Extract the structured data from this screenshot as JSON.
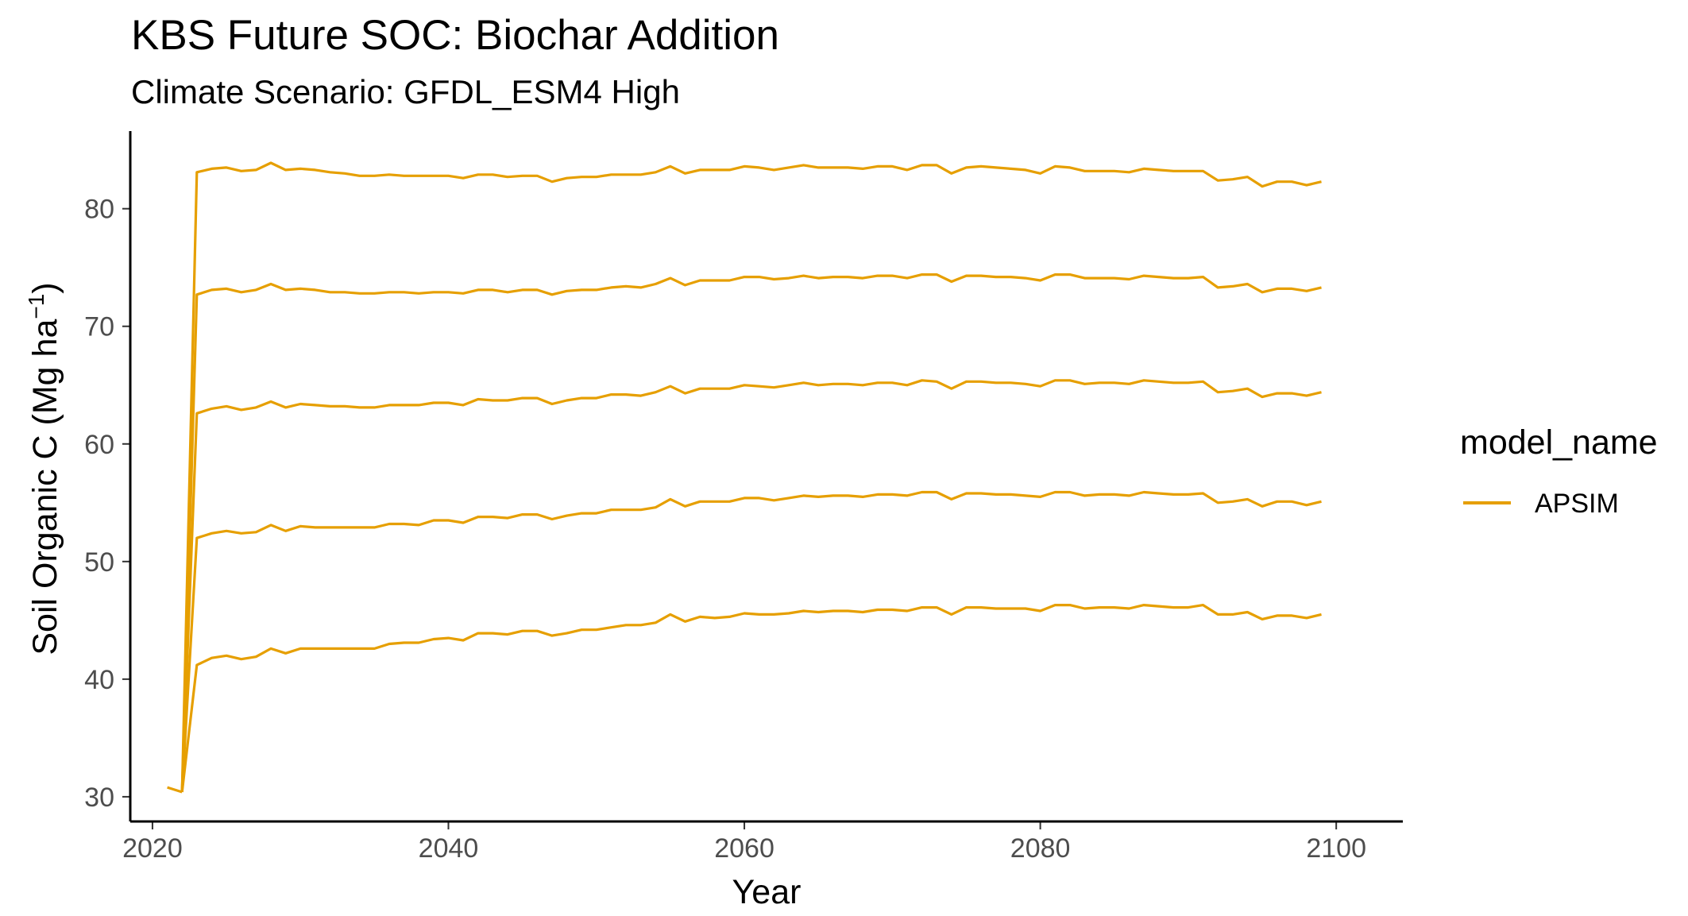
{
  "chart_data": {
    "type": "line",
    "title": "KBS  Future SOC: Biochar Addition",
    "subtitle": "Climate Scenario: GFDL_ESM4 High",
    "xlabel": "Year",
    "ylabel_main": "Soil Organic C (Mg ha",
    "ylabel_sup": "−1",
    "ylabel_close": ")",
    "xlim": [
      2018.5,
      2104.5
    ],
    "ylim": [
      27.9,
      86.6
    ],
    "x_ticks": [
      2020,
      2040,
      2060,
      2080,
      2100
    ],
    "y_ticks": [
      30,
      40,
      50,
      60,
      70,
      80
    ],
    "grid": false,
    "legend": {
      "title": "model_name",
      "position": "right",
      "entries": [
        "APSIM"
      ]
    },
    "series_color": "#E69F00",
    "series": [
      {
        "name": "APSIM",
        "x": [
          2021,
          2022
        ],
        "y": [
          30.8,
          30.4
        ]
      },
      {
        "name": "APSIM",
        "x": [
          2022,
          2023,
          2024,
          2025,
          2026,
          2027,
          2028,
          2029,
          2030,
          2031,
          2032,
          2033,
          2034,
          2035,
          2036,
          2037,
          2038,
          2039,
          2040,
          2041,
          2042,
          2043,
          2044,
          2045,
          2046,
          2047,
          2048,
          2049,
          2050,
          2051,
          2052,
          2053,
          2054,
          2055,
          2056,
          2057,
          2058,
          2059,
          2060,
          2061,
          2062,
          2063,
          2064,
          2065,
          2066,
          2067,
          2068,
          2069,
          2070,
          2071,
          2072,
          2073,
          2074,
          2075,
          2076,
          2077,
          2078,
          2079,
          2080,
          2081,
          2082,
          2083,
          2084,
          2085,
          2086,
          2087,
          2088,
          2089,
          2090,
          2091,
          2092,
          2093,
          2094,
          2095,
          2096,
          2097,
          2098,
          2099
        ],
        "y": [
          30.4,
          41.2,
          41.8,
          42.0,
          41.7,
          41.9,
          42.6,
          42.2,
          42.6,
          42.6,
          42.6,
          42.6,
          42.6,
          42.6,
          43.0,
          43.1,
          43.1,
          43.4,
          43.5,
          43.3,
          43.9,
          43.9,
          43.8,
          44.1,
          44.1,
          43.7,
          43.9,
          44.2,
          44.2,
          44.4,
          44.6,
          44.6,
          44.8,
          45.5,
          44.9,
          45.3,
          45.2,
          45.3,
          45.6,
          45.5,
          45.5,
          45.6,
          45.8,
          45.7,
          45.8,
          45.8,
          45.7,
          45.9,
          45.9,
          45.8,
          46.1,
          46.1,
          45.5,
          46.1,
          46.1,
          46.0,
          46.0,
          46.0,
          45.8,
          46.3,
          46.3,
          46.0,
          46.1,
          46.1,
          46.0,
          46.3,
          46.2,
          46.1,
          46.1,
          46.3,
          45.5,
          45.5,
          45.7,
          45.1,
          45.4,
          45.4,
          45.2,
          45.5
        ]
      },
      {
        "name": "APSIM",
        "x": [
          2022,
          2023,
          2024,
          2025,
          2026,
          2027,
          2028,
          2029,
          2030,
          2031,
          2032,
          2033,
          2034,
          2035,
          2036,
          2037,
          2038,
          2039,
          2040,
          2041,
          2042,
          2043,
          2044,
          2045,
          2046,
          2047,
          2048,
          2049,
          2050,
          2051,
          2052,
          2053,
          2054,
          2055,
          2056,
          2057,
          2058,
          2059,
          2060,
          2061,
          2062,
          2063,
          2064,
          2065,
          2066,
          2067,
          2068,
          2069,
          2070,
          2071,
          2072,
          2073,
          2074,
          2075,
          2076,
          2077,
          2078,
          2079,
          2080,
          2081,
          2082,
          2083,
          2084,
          2085,
          2086,
          2087,
          2088,
          2089,
          2090,
          2091,
          2092,
          2093,
          2094,
          2095,
          2096,
          2097,
          2098,
          2099
        ],
        "y": [
          30.4,
          52.0,
          52.4,
          52.6,
          52.4,
          52.5,
          53.1,
          52.6,
          53.0,
          52.9,
          52.9,
          52.9,
          52.9,
          52.9,
          53.2,
          53.2,
          53.1,
          53.5,
          53.5,
          53.3,
          53.8,
          53.8,
          53.7,
          54.0,
          54.0,
          53.6,
          53.9,
          54.1,
          54.1,
          54.4,
          54.4,
          54.4,
          54.6,
          55.3,
          54.7,
          55.1,
          55.1,
          55.1,
          55.4,
          55.4,
          55.2,
          55.4,
          55.6,
          55.5,
          55.6,
          55.6,
          55.5,
          55.7,
          55.7,
          55.6,
          55.9,
          55.9,
          55.3,
          55.8,
          55.8,
          55.7,
          55.7,
          55.6,
          55.5,
          55.9,
          55.9,
          55.6,
          55.7,
          55.7,
          55.6,
          55.9,
          55.8,
          55.7,
          55.7,
          55.8,
          55.0,
          55.1,
          55.3,
          54.7,
          55.1,
          55.1,
          54.8,
          55.1
        ]
      },
      {
        "name": "APSIM",
        "x": [
          2022,
          2023,
          2024,
          2025,
          2026,
          2027,
          2028,
          2029,
          2030,
          2031,
          2032,
          2033,
          2034,
          2035,
          2036,
          2037,
          2038,
          2039,
          2040,
          2041,
          2042,
          2043,
          2044,
          2045,
          2046,
          2047,
          2048,
          2049,
          2050,
          2051,
          2052,
          2053,
          2054,
          2055,
          2056,
          2057,
          2058,
          2059,
          2060,
          2061,
          2062,
          2063,
          2064,
          2065,
          2066,
          2067,
          2068,
          2069,
          2070,
          2071,
          2072,
          2073,
          2074,
          2075,
          2076,
          2077,
          2078,
          2079,
          2080,
          2081,
          2082,
          2083,
          2084,
          2085,
          2086,
          2087,
          2088,
          2089,
          2090,
          2091,
          2092,
          2093,
          2094,
          2095,
          2096,
          2097,
          2098,
          2099
        ],
        "y": [
          30.4,
          62.6,
          63.0,
          63.2,
          62.9,
          63.1,
          63.6,
          63.1,
          63.4,
          63.3,
          63.2,
          63.2,
          63.1,
          63.1,
          63.3,
          63.3,
          63.3,
          63.5,
          63.5,
          63.3,
          63.8,
          63.7,
          63.7,
          63.9,
          63.9,
          63.4,
          63.7,
          63.9,
          63.9,
          64.2,
          64.2,
          64.1,
          64.4,
          64.9,
          64.3,
          64.7,
          64.7,
          64.7,
          65.0,
          64.9,
          64.8,
          65.0,
          65.2,
          65.0,
          65.1,
          65.1,
          65.0,
          65.2,
          65.2,
          65.0,
          65.4,
          65.3,
          64.7,
          65.3,
          65.3,
          65.2,
          65.2,
          65.1,
          64.9,
          65.4,
          65.4,
          65.1,
          65.2,
          65.2,
          65.1,
          65.4,
          65.3,
          65.2,
          65.2,
          65.3,
          64.4,
          64.5,
          64.7,
          64.0,
          64.3,
          64.3,
          64.1,
          64.4
        ]
      },
      {
        "name": "APSIM",
        "x": [
          2022,
          2023,
          2024,
          2025,
          2026,
          2027,
          2028,
          2029,
          2030,
          2031,
          2032,
          2033,
          2034,
          2035,
          2036,
          2037,
          2038,
          2039,
          2040,
          2041,
          2042,
          2043,
          2044,
          2045,
          2046,
          2047,
          2048,
          2049,
          2050,
          2051,
          2052,
          2053,
          2054,
          2055,
          2056,
          2057,
          2058,
          2059,
          2060,
          2061,
          2062,
          2063,
          2064,
          2065,
          2066,
          2067,
          2068,
          2069,
          2070,
          2071,
          2072,
          2073,
          2074,
          2075,
          2076,
          2077,
          2078,
          2079,
          2080,
          2081,
          2082,
          2083,
          2084,
          2085,
          2086,
          2087,
          2088,
          2089,
          2090,
          2091,
          2092,
          2093,
          2094,
          2095,
          2096,
          2097,
          2098,
          2099
        ],
        "y": [
          30.4,
          72.7,
          73.1,
          73.2,
          72.9,
          73.1,
          73.6,
          73.1,
          73.2,
          73.1,
          72.9,
          72.9,
          72.8,
          72.8,
          72.9,
          72.9,
          72.8,
          72.9,
          72.9,
          72.8,
          73.1,
          73.1,
          72.9,
          73.1,
          73.1,
          72.7,
          73.0,
          73.1,
          73.1,
          73.3,
          73.4,
          73.3,
          73.6,
          74.1,
          73.5,
          73.9,
          73.9,
          73.9,
          74.2,
          74.2,
          74.0,
          74.1,
          74.3,
          74.1,
          74.2,
          74.2,
          74.1,
          74.3,
          74.3,
          74.1,
          74.4,
          74.4,
          73.8,
          74.3,
          74.3,
          74.2,
          74.2,
          74.1,
          73.9,
          74.4,
          74.4,
          74.1,
          74.1,
          74.1,
          74.0,
          74.3,
          74.2,
          74.1,
          74.1,
          74.2,
          73.3,
          73.4,
          73.6,
          72.9,
          73.2,
          73.2,
          73.0,
          73.3
        ]
      },
      {
        "name": "APSIM",
        "x": [
          2022,
          2023,
          2024,
          2025,
          2026,
          2027,
          2028,
          2029,
          2030,
          2031,
          2032,
          2033,
          2034,
          2035,
          2036,
          2037,
          2038,
          2039,
          2040,
          2041,
          2042,
          2043,
          2044,
          2045,
          2046,
          2047,
          2048,
          2049,
          2050,
          2051,
          2052,
          2053,
          2054,
          2055,
          2056,
          2057,
          2058,
          2059,
          2060,
          2061,
          2062,
          2063,
          2064,
          2065,
          2066,
          2067,
          2068,
          2069,
          2070,
          2071,
          2072,
          2073,
          2074,
          2075,
          2076,
          2077,
          2078,
          2079,
          2080,
          2081,
          2082,
          2083,
          2084,
          2085,
          2086,
          2087,
          2088,
          2089,
          2090,
          2091,
          2092,
          2093,
          2094,
          2095,
          2096,
          2097,
          2098,
          2099
        ],
        "y": [
          30.4,
          83.1,
          83.4,
          83.5,
          83.2,
          83.3,
          83.9,
          83.3,
          83.4,
          83.3,
          83.1,
          83.0,
          82.8,
          82.8,
          82.9,
          82.8,
          82.8,
          82.8,
          82.8,
          82.6,
          82.9,
          82.9,
          82.7,
          82.8,
          82.8,
          82.3,
          82.6,
          82.7,
          82.7,
          82.9,
          82.9,
          82.9,
          83.1,
          83.6,
          83.0,
          83.3,
          83.3,
          83.3,
          83.6,
          83.5,
          83.3,
          83.5,
          83.7,
          83.5,
          83.5,
          83.5,
          83.4,
          83.6,
          83.6,
          83.3,
          83.7,
          83.7,
          83.0,
          83.5,
          83.6,
          83.5,
          83.4,
          83.3,
          83.0,
          83.6,
          83.5,
          83.2,
          83.2,
          83.2,
          83.1,
          83.4,
          83.3,
          83.2,
          83.2,
          83.2,
          82.4,
          82.5,
          82.7,
          81.9,
          82.3,
          82.3,
          82.0,
          82.3
        ]
      }
    ]
  }
}
